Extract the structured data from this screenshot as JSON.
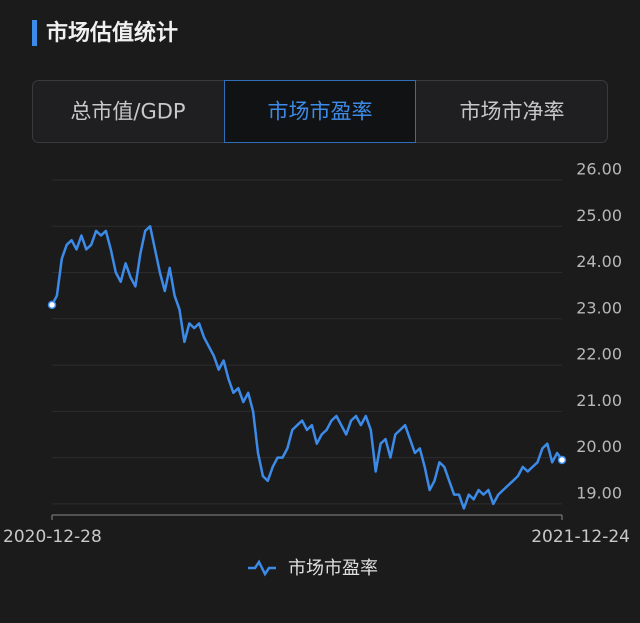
{
  "header": {
    "title": "市场估值统计"
  },
  "tabs": {
    "items": [
      "总市值/GDP",
      "市场市盈率",
      "市场市净率"
    ],
    "active": 1
  },
  "chart_data": {
    "type": "line",
    "categories": [
      "2020-12-28",
      null,
      null,
      null,
      null,
      null,
      null,
      null,
      null,
      null,
      null,
      null,
      null,
      null,
      null,
      null,
      null,
      null,
      null,
      null,
      null,
      null,
      null,
      null,
      null,
      null,
      null,
      null,
      null,
      null,
      null,
      null,
      null,
      null,
      null,
      null,
      null,
      null,
      null,
      null,
      null,
      null,
      null,
      null,
      null,
      null,
      null,
      null,
      null,
      null,
      null,
      null,
      null,
      null,
      null,
      null,
      null,
      null,
      null,
      null,
      null,
      null,
      null,
      null,
      null,
      null,
      null,
      null,
      null,
      null,
      null,
      null,
      null,
      null,
      null,
      null,
      null,
      null,
      null,
      null,
      null,
      null,
      null,
      null,
      null,
      null,
      null,
      null,
      null,
      null,
      null,
      null,
      null,
      null,
      null,
      null,
      null,
      null,
      null,
      null,
      null,
      null,
      null,
      null,
      "2021-12-24"
    ],
    "series": [
      {
        "name": "市场市盈率",
        "color": "#3d8be8",
        "values": [
          23.3,
          23.5,
          24.3,
          24.6,
          24.7,
          24.5,
          24.8,
          24.5,
          24.6,
          24.9,
          24.8,
          24.9,
          24.5,
          24.0,
          23.8,
          24.2,
          23.9,
          23.7,
          24.4,
          24.9,
          25.0,
          24.5,
          24.0,
          23.6,
          24.1,
          23.5,
          23.2,
          22.5,
          22.9,
          22.8,
          22.9,
          22.6,
          22.4,
          22.2,
          21.9,
          22.1,
          21.7,
          21.4,
          21.5,
          21.2,
          21.4,
          21.0,
          20.1,
          19.6,
          19.5,
          19.8,
          20.0,
          20.0,
          20.2,
          20.6,
          20.7,
          20.8,
          20.6,
          20.7,
          20.3,
          20.5,
          20.6,
          20.8,
          20.9,
          20.7,
          20.5,
          20.8,
          20.9,
          20.7,
          20.9,
          20.6,
          19.7,
          20.3,
          20.4,
          20.0,
          20.5,
          20.6,
          20.7,
          20.4,
          20.1,
          20.2,
          19.8,
          19.3,
          19.5,
          19.9,
          19.8,
          19.5,
          19.2,
          19.2,
          18.9,
          19.2,
          19.1,
          19.3,
          19.2,
          19.3,
          19.0,
          19.2,
          19.3,
          19.4,
          19.5,
          19.6,
          19.8,
          19.7,
          19.8,
          19.9,
          20.2,
          20.3,
          19.9,
          20.1,
          19.95
        ]
      }
    ],
    "ylim": [
      18.76,
      26
    ],
    "yticks": [
      {
        "value": 19,
        "label": "19.00"
      },
      {
        "value": 20,
        "label": "20.00"
      },
      {
        "value": 21,
        "label": "21.00"
      },
      {
        "value": 22,
        "label": "22.00"
      },
      {
        "value": 23,
        "label": "23.00"
      },
      {
        "value": 24,
        "label": "24.00"
      },
      {
        "value": 25,
        "label": "25.00"
      },
      {
        "value": 26,
        "label": "26.00"
      }
    ],
    "grid": true
  }
}
